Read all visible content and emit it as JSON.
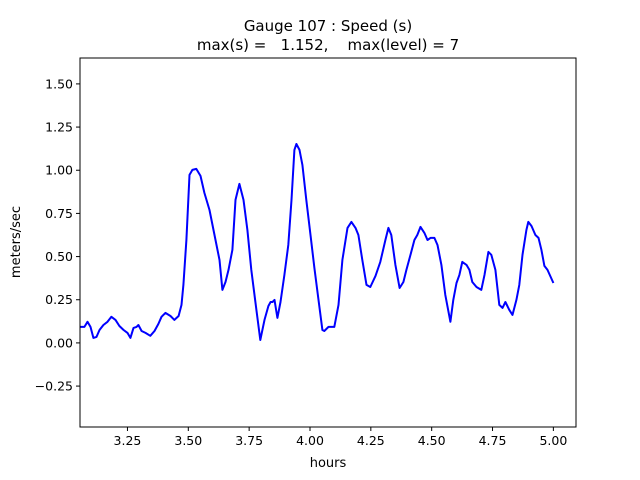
{
  "chart_data": {
    "type": "line",
    "title_line1": "Gauge 107 : Speed (s)",
    "title_line2": "max(s) =   1.152,    max(level) = 7",
    "xlabel": "hours",
    "ylabel": "meters/sec",
    "xlim": [
      3.055,
      5.093
    ],
    "ylim": [
      -0.487,
      1.65
    ],
    "xticks": [
      3.25,
      3.5,
      3.75,
      4.0,
      4.25,
      4.5,
      4.75,
      5.0
    ],
    "xtick_labels": [
      "3.25",
      "3.50",
      "3.75",
      "4.00",
      "4.25",
      "4.50",
      "4.75",
      "5.00"
    ],
    "yticks": [
      -0.25,
      0.0,
      0.25,
      0.5,
      0.75,
      1.0,
      1.25,
      1.5
    ],
    "ytick_labels": [
      "−0.25",
      "0.00",
      "0.25",
      "0.50",
      "0.75",
      "1.00",
      "1.25",
      "1.50"
    ],
    "grid": false,
    "series": [
      {
        "name": "speed",
        "color": "#0000ff",
        "x": [
          3.057,
          3.073,
          3.086,
          3.098,
          3.11,
          3.123,
          3.135,
          3.151,
          3.168,
          3.184,
          3.201,
          3.217,
          3.234,
          3.25,
          3.262,
          3.275,
          3.287,
          3.295,
          3.308,
          3.324,
          3.344,
          3.361,
          3.377,
          3.39,
          3.406,
          3.427,
          3.443,
          3.46,
          3.472,
          3.48,
          3.492,
          3.505,
          3.517,
          3.533,
          3.55,
          3.566,
          3.587,
          3.607,
          3.628,
          3.64,
          3.653,
          3.665,
          3.681,
          3.694,
          3.71,
          3.727,
          3.743,
          3.759,
          3.78,
          3.796,
          3.813,
          3.829,
          3.838,
          3.846,
          3.854,
          3.866,
          3.879,
          3.895,
          3.911,
          3.924,
          3.936,
          3.944,
          3.957,
          3.969,
          3.985,
          4.002,
          4.018,
          4.035,
          4.051,
          4.059,
          4.076,
          4.088,
          4.1,
          4.117,
          4.133,
          4.154,
          4.17,
          4.187,
          4.199,
          4.215,
          4.232,
          4.248,
          4.269,
          4.289,
          4.31,
          4.322,
          4.334,
          4.351,
          4.368,
          4.384,
          4.396,
          4.413,
          4.429,
          4.441,
          4.454,
          4.47,
          4.483,
          4.495,
          4.511,
          4.524,
          4.54,
          4.556,
          4.577,
          4.589,
          4.602,
          4.614,
          4.626,
          4.643,
          4.655,
          4.667,
          4.684,
          4.704,
          4.717,
          4.733,
          4.745,
          4.762,
          4.778,
          4.791,
          4.803,
          4.819,
          4.832,
          4.848,
          4.86,
          4.873,
          4.889,
          4.897,
          4.91,
          4.926,
          4.939,
          4.951,
          4.963,
          4.976,
          5.0
        ],
        "y": [
          0.093,
          0.093,
          0.122,
          0.093,
          0.029,
          0.035,
          0.075,
          0.104,
          0.122,
          0.151,
          0.133,
          0.098,
          0.075,
          0.058,
          0.029,
          0.087,
          0.093,
          0.104,
          0.069,
          0.058,
          0.041,
          0.069,
          0.11,
          0.151,
          0.174,
          0.156,
          0.133,
          0.156,
          0.22,
          0.336,
          0.596,
          0.973,
          1.002,
          1.008,
          0.967,
          0.869,
          0.77,
          0.631,
          0.481,
          0.307,
          0.353,
          0.423,
          0.539,
          0.828,
          0.921,
          0.828,
          0.654,
          0.423,
          0.191,
          0.017,
          0.133,
          0.214,
          0.237,
          0.237,
          0.249,
          0.145,
          0.237,
          0.394,
          0.567,
          0.828,
          1.118,
          1.152,
          1.118,
          1.031,
          0.828,
          0.625,
          0.434,
          0.249,
          0.075,
          0.069,
          0.093,
          0.093,
          0.093,
          0.22,
          0.481,
          0.666,
          0.701,
          0.666,
          0.625,
          0.481,
          0.336,
          0.324,
          0.388,
          0.469,
          0.596,
          0.666,
          0.625,
          0.452,
          0.318,
          0.353,
          0.423,
          0.51,
          0.596,
          0.625,
          0.672,
          0.637,
          0.596,
          0.608,
          0.608,
          0.567,
          0.452,
          0.278,
          0.122,
          0.249,
          0.347,
          0.394,
          0.469,
          0.452,
          0.423,
          0.353,
          0.324,
          0.307,
          0.394,
          0.527,
          0.51,
          0.423,
          0.22,
          0.203,
          0.237,
          0.191,
          0.162,
          0.249,
          0.336,
          0.51,
          0.654,
          0.701,
          0.677,
          0.625,
          0.608,
          0.539,
          0.446,
          0.423,
          0.347
        ]
      }
    ]
  }
}
